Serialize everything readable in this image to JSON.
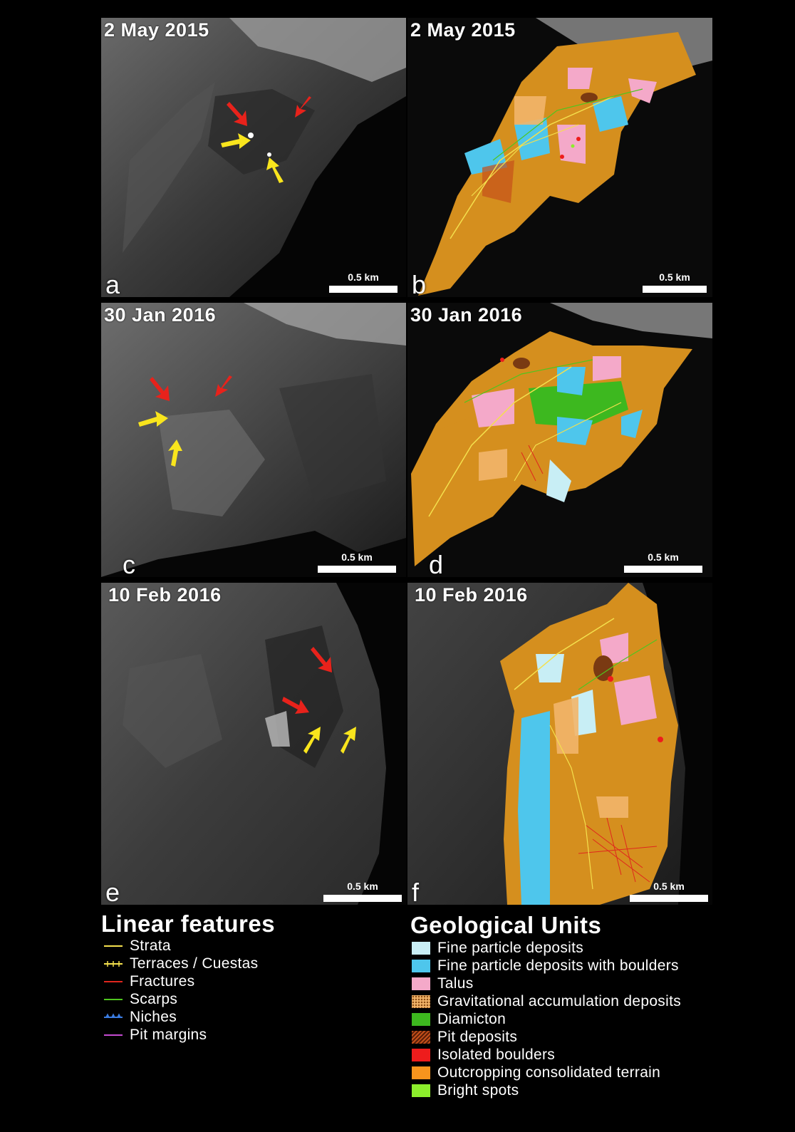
{
  "panels": [
    {
      "id": "a",
      "date": "2 May 2015",
      "letter": "a",
      "scale": "0.5 km",
      "kind": "image"
    },
    {
      "id": "b",
      "date": "2 May 2015",
      "letter": "b",
      "scale": "0.5 km",
      "kind": "map"
    },
    {
      "id": "c",
      "date": "30 Jan 2016",
      "letter": "c",
      "scale": "0.5 km",
      "kind": "image"
    },
    {
      "id": "d",
      "date": "30 Jan 2016",
      "letter": "d",
      "scale": "0.5 km",
      "kind": "map"
    },
    {
      "id": "e",
      "date": "10 Feb 2016",
      "letter": "e",
      "scale": "0.5 km",
      "kind": "image"
    },
    {
      "id": "f",
      "date": "10 Feb 2016",
      "letter": "f",
      "scale": "0.5 km",
      "kind": "map"
    }
  ],
  "legend": {
    "linear": {
      "title": "Linear features",
      "items": [
        {
          "label": "Strata",
          "color": "#f4e04d",
          "style": "line"
        },
        {
          "label": "Terraces / Cuestas",
          "color": "#f4e04d",
          "style": "ticked"
        },
        {
          "label": "Fractures",
          "color": "#e0261d",
          "style": "line"
        },
        {
          "label": "Scarps",
          "color": "#4fc51f",
          "style": "line"
        },
        {
          "label": "Niches",
          "color": "#3a7be0",
          "style": "teeth"
        },
        {
          "label": "Pit margins",
          "color": "#c54bd1",
          "style": "line"
        }
      ]
    },
    "units": {
      "title": "Geological Units",
      "items": [
        {
          "label": "Fine particle deposits",
          "color": "#c8eef5"
        },
        {
          "label": "Fine particle deposits with boulders",
          "color": "#4ec6ec"
        },
        {
          "label": "Talus",
          "color": "#f4a9c9"
        },
        {
          "label": "Gravitational accumulation deposits",
          "color": "#f2b56a",
          "pattern": "dots"
        },
        {
          "label": "Diamicton",
          "color": "#3db81f"
        },
        {
          "label": "Pit deposits",
          "color": "#c4501a",
          "pattern": "hatch"
        },
        {
          "label": "Isolated boulders",
          "color": "#ee1c1c"
        },
        {
          "label": "Outcropping consolidated terrain",
          "color": "#f7941d"
        },
        {
          "label": "Bright spots",
          "color": "#8cee2c"
        }
      ]
    }
  },
  "arrow_colors": {
    "red": "#e8221b",
    "yellow": "#f9e51d"
  }
}
